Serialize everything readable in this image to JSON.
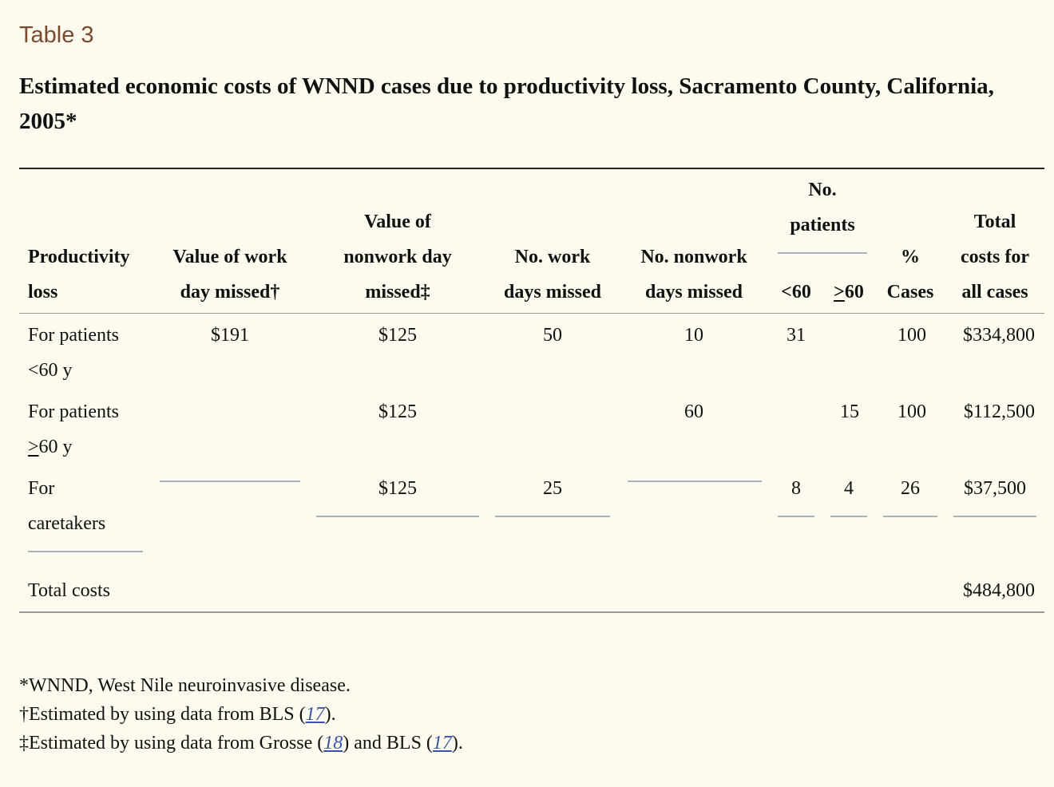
{
  "table_label": "Table 3",
  "caption": "Estimated economic costs of WNND cases due to productivity loss, Sacramento County, California, 2005*",
  "headers": {
    "productivity_loss": [
      "Productivity",
      "loss"
    ],
    "value_work_day": [
      "Value of work",
      "day missed†"
    ],
    "value_nonwork_day": [
      "Value of",
      "nonwork day",
      "missed‡"
    ],
    "work_days": [
      "No. work",
      "days missed"
    ],
    "nonwork_days": [
      "No. nonwork",
      "days missed"
    ],
    "patients_group": [
      "No.",
      "patients"
    ],
    "lt60": "<60",
    "ge60": "60",
    "pct_cases": [
      "%",
      "Cases"
    ],
    "total_costs": [
      "Total",
      "costs for",
      "all cases"
    ]
  },
  "rows": [
    {
      "label": [
        "For patients",
        "<60 y"
      ],
      "value_work_day": "$191",
      "value_nonwork_day": "$125",
      "work_days": "50",
      "nonwork_days": "10",
      "lt60": "31",
      "ge60": "",
      "pct": "100",
      "total": "$334,800"
    },
    {
      "label": [
        "For patients",
        "60 y"
      ],
      "value_work_day": "",
      "value_nonwork_day": "$125",
      "work_days": "",
      "nonwork_days": "60",
      "lt60": "",
      "ge60": "15",
      "pct": "100",
      "total": "$112,500"
    },
    {
      "label": [
        "For",
        "caretakers"
      ],
      "value_work_day": "",
      "value_nonwork_day": "$125",
      "work_days": "25",
      "nonwork_days": "",
      "lt60": "8",
      "ge60": "4",
      "pct": "26",
      "total": "$37,500"
    }
  ],
  "total_row": {
    "label": "Total costs",
    "total": "$484,800"
  },
  "footnotes": {
    "f1": "*WNND, West Nile neuroinvasive disease.",
    "f2_pre": "†Estimated by using data from BLS (",
    "f2_ref": "17",
    "f2_post": ").",
    "f3_pre": "‡Estimated by using data from Grosse (",
    "f3_ref1": "18",
    "f3_mid": ") and BLS (",
    "f3_ref2": "17",
    "f3_post": ")."
  }
}
